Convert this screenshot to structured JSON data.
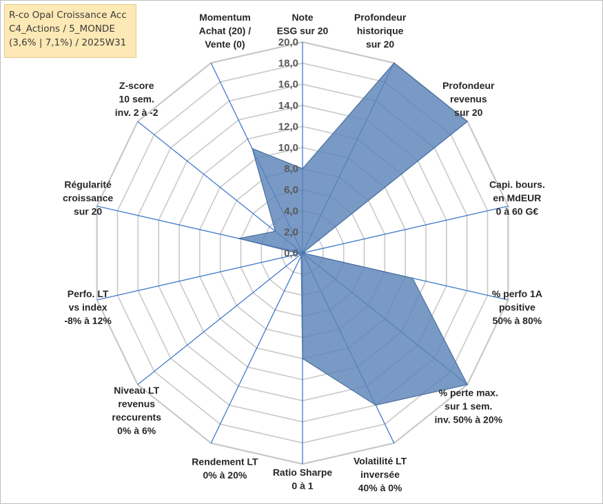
{
  "header": {
    "lines": [
      "R-co Opal Croissance Acc",
      "C4_Actions / 5_MONDE",
      "(3,6% | 7,1%) / 2025W31"
    ]
  },
  "colors": {
    "fill": "#5b84b8",
    "stroke": "#4a6fa0",
    "spoke": "#2f6fc7",
    "grid": "#c8c8c8",
    "title_bg": "#fde9b5"
  },
  "chart_data": {
    "type": "radar",
    "rlim": [
      0,
      20
    ],
    "tick_step": 2,
    "grid": true,
    "tick_labels": [
      "0,0",
      "2,0",
      "4,0",
      "6,0",
      "8,0",
      "10,0",
      "12,0",
      "14,0",
      "16,0",
      "18,0",
      "20,0"
    ],
    "axes": [
      {
        "label": [
          "Note",
          "ESG sur 20"
        ],
        "value": 8.0
      },
      {
        "label": [
          "Profondeur",
          "historique",
          "sur 20"
        ],
        "value": 20.0
      },
      {
        "label": [
          "Profondeur",
          "revenus",
          "sur 20"
        ],
        "value": 20.0
      },
      {
        "label": [
          "Capi. bours.",
          "en MdEUR",
          "0 à 60 G€"
        ],
        "value": 0.0
      },
      {
        "label": [
          "% perfo 1A",
          "positive",
          "50% à 80%"
        ],
        "value": 10.7
      },
      {
        "label": [
          "% perte max.",
          "sur 1 sem.",
          "inv. 50% à 20%"
        ],
        "value": 20.0
      },
      {
        "label": [
          "Volatilité LT",
          "inversée",
          "40% à 0%"
        ],
        "value": 16.0
      },
      {
        "label": [
          "Ratio Sharpe",
          "0 à 1"
        ],
        "value": 10.0
      },
      {
        "label": [
          "Rendement LT",
          "0% à 20%"
        ],
        "value": 0.3
      },
      {
        "label": [
          "Niveau LT",
          "revenus",
          "reccurents",
          "0% à 6%"
        ],
        "value": 0.3
      },
      {
        "label": [
          "Perfo. LT",
          "vs index",
          "-8% à 12%"
        ],
        "value": 0.3
      },
      {
        "label": [
          "Régularité",
          "croissance",
          "sur 20"
        ],
        "value": 6.2
      },
      {
        "label": [
          "Z-score",
          "10 sem.",
          "inv. 2 à -2"
        ],
        "value": 3.3
      },
      {
        "label": [
          "Momentum",
          "Achat (20) /",
          "Vente (0)"
        ],
        "value": 11.0
      }
    ]
  }
}
